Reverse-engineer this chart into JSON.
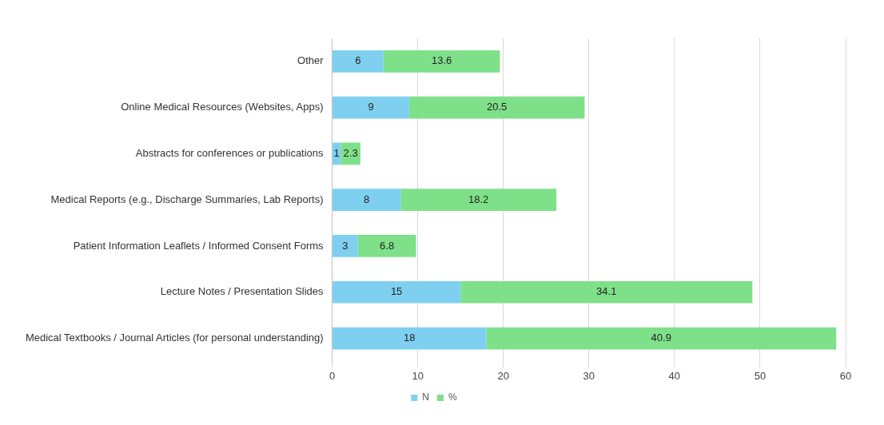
{
  "chart_data": {
    "type": "bar",
    "orientation": "horizontal",
    "stacked": true,
    "categories": [
      "Other",
      "Online Medical Resources (Websites, Apps)",
      "Abstracts for conferences or publications",
      "Medical Reports (e.g., Discharge Summaries, Lab Reports)",
      "Patient Information Leaflets / Informed Consent Forms",
      "Lecture Notes / Presentation Slides",
      "Medical Textbooks / Journal Articles (for personal understanding)"
    ],
    "series": [
      {
        "name": "N",
        "color": "#7fd0f0",
        "values": [
          6,
          9,
          1,
          8,
          3,
          15,
          18
        ]
      },
      {
        "name": "%",
        "color": "#7fe08a",
        "values": [
          13.6,
          20.5,
          2.3,
          18.2,
          6.8,
          34.1,
          40.9
        ]
      }
    ],
    "xlim": [
      0,
      60
    ],
    "xticks": [
      0,
      10,
      20,
      30,
      40,
      50,
      60
    ],
    "grid": "x",
    "legend": "bottom",
    "data_labels": true
  }
}
